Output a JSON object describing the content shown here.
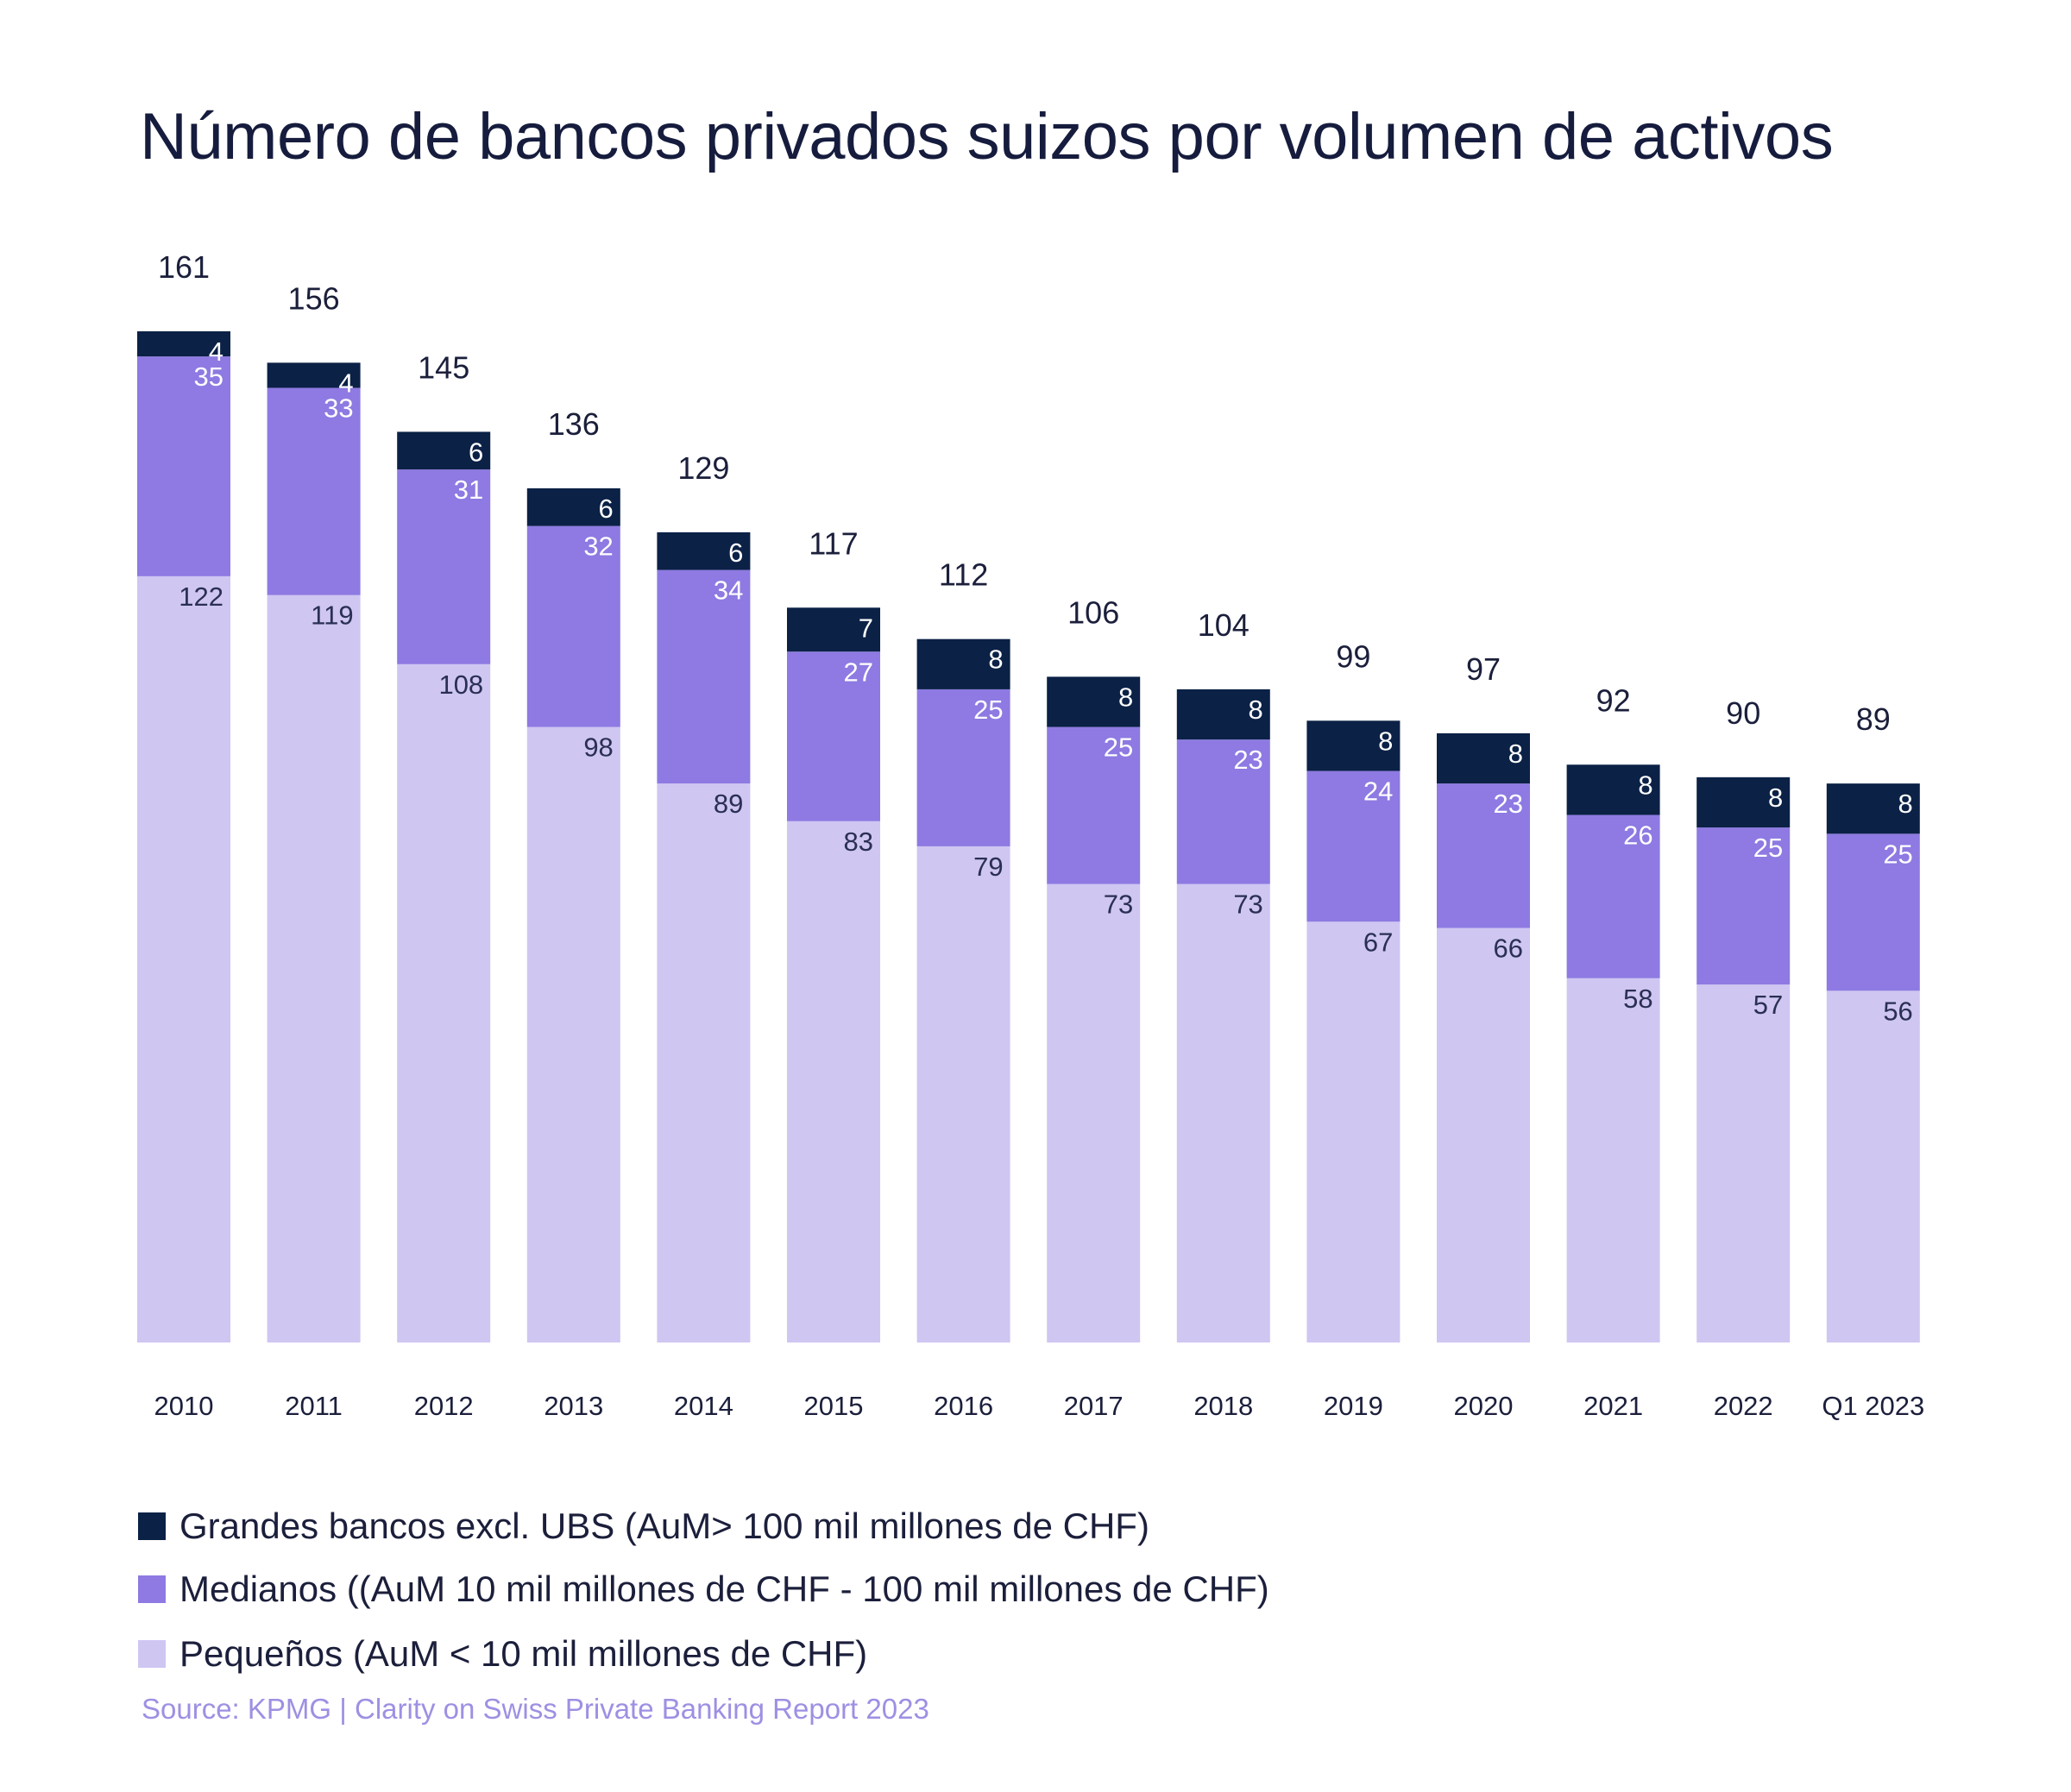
{
  "chart_data": {
    "type": "bar",
    "stacked": true,
    "title": "Número de bancos privados suizos por volumen de activos",
    "categories": [
      "2010",
      "2011",
      "2012",
      "2013",
      "2014",
      "2015",
      "2016",
      "2017",
      "2018",
      "2019",
      "2020",
      "2021",
      "2022",
      "Q1 2023"
    ],
    "series": [
      {
        "name": "Pequeños (AuM < 10 mil millones de CHF)",
        "color": "#cfc6f2",
        "values": [
          122,
          119,
          108,
          98,
          89,
          83,
          79,
          73,
          73,
          67,
          66,
          58,
          57,
          56
        ]
      },
      {
        "name": "Medianos ((AuM 10 mil millones de CHF - 100 mil millones de CHF)",
        "color": "#8e7ae2",
        "values": [
          35,
          33,
          31,
          32,
          34,
          27,
          25,
          25,
          23,
          24,
          23,
          26,
          25,
          25
        ]
      },
      {
        "name": "Grandes bancos excl. UBS (AuM> 100 mil millones de CHF)",
        "color": "#0b2146",
        "values": [
          4,
          4,
          6,
          6,
          6,
          7,
          8,
          8,
          8,
          8,
          8,
          8,
          8,
          8
        ]
      }
    ],
    "totals": [
      161,
      156,
      145,
      136,
      129,
      117,
      112,
      106,
      104,
      99,
      97,
      92,
      90,
      89
    ],
    "legend_order": [
      2,
      1,
      0
    ],
    "legend_position": "bottom-left",
    "grid": false,
    "y_axis_visible": false,
    "ylim": [
      0,
      161
    ],
    "source": "Source: KPMG | Clarity on Swiss Private Banking Report 2023"
  }
}
